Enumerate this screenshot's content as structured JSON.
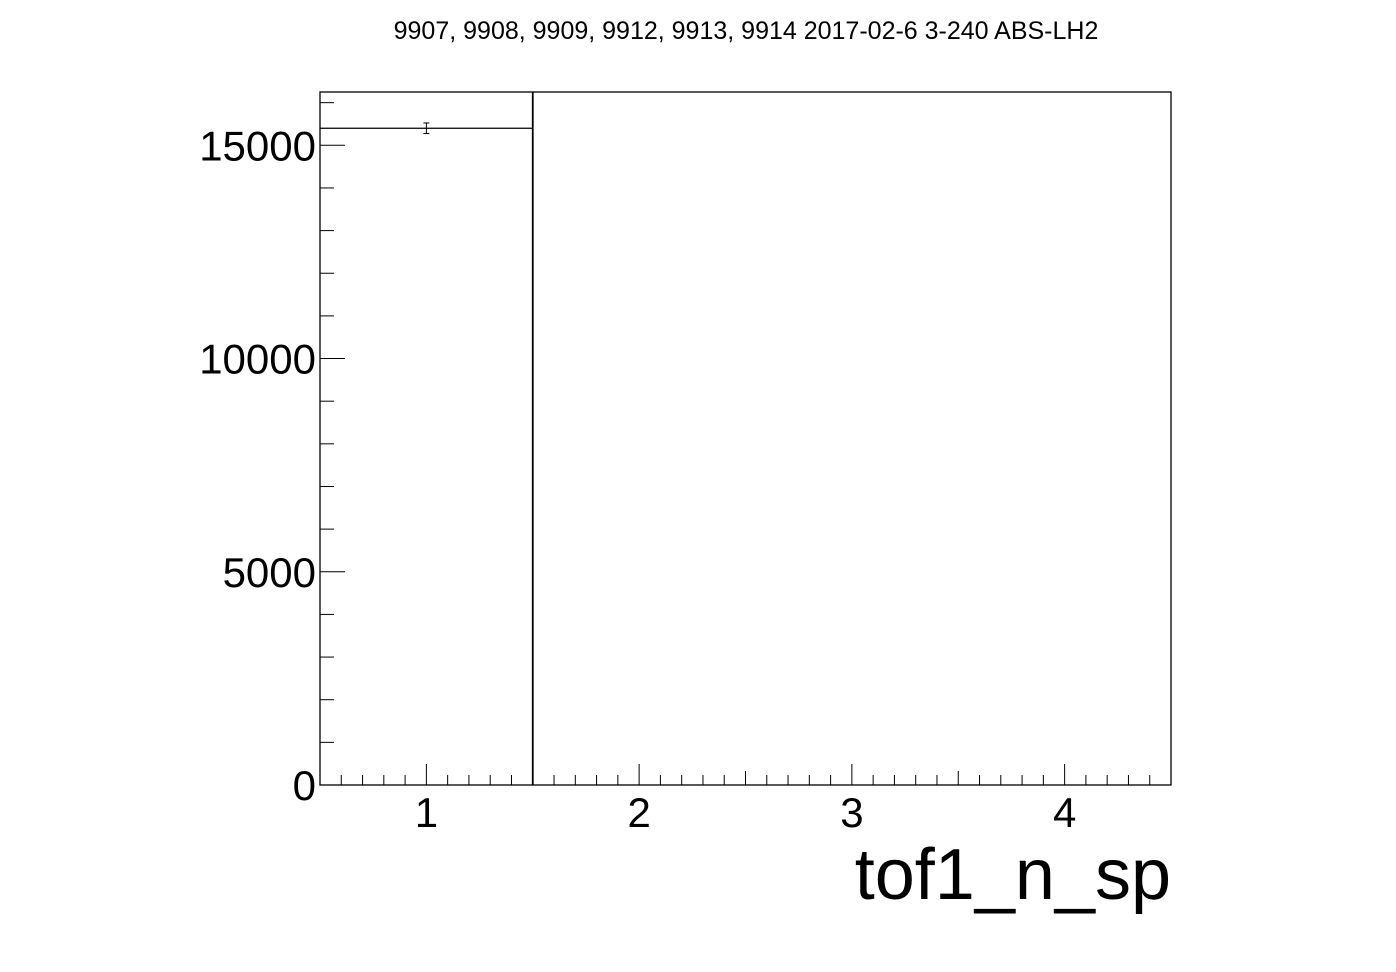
{
  "chart_data": {
    "type": "bar",
    "title": "9907, 9908, 9909, 9912, 9913, 9914 2017-02-6 3-240 ABS-LH2",
    "xlabel": "tof1_n_sp",
    "ylabel": "",
    "xlim": [
      0.5,
      4.5
    ],
    "ylim": [
      0,
      16250
    ],
    "x_ticks": [
      1,
      2,
      3,
      4
    ],
    "y_ticks": [
      0,
      5000,
      10000,
      15000
    ],
    "grid": false,
    "bins": [
      {
        "x_low": 0.5,
        "x_high": 1.5,
        "x_center": 1,
        "value": 15400,
        "error": 124
      }
    ]
  }
}
